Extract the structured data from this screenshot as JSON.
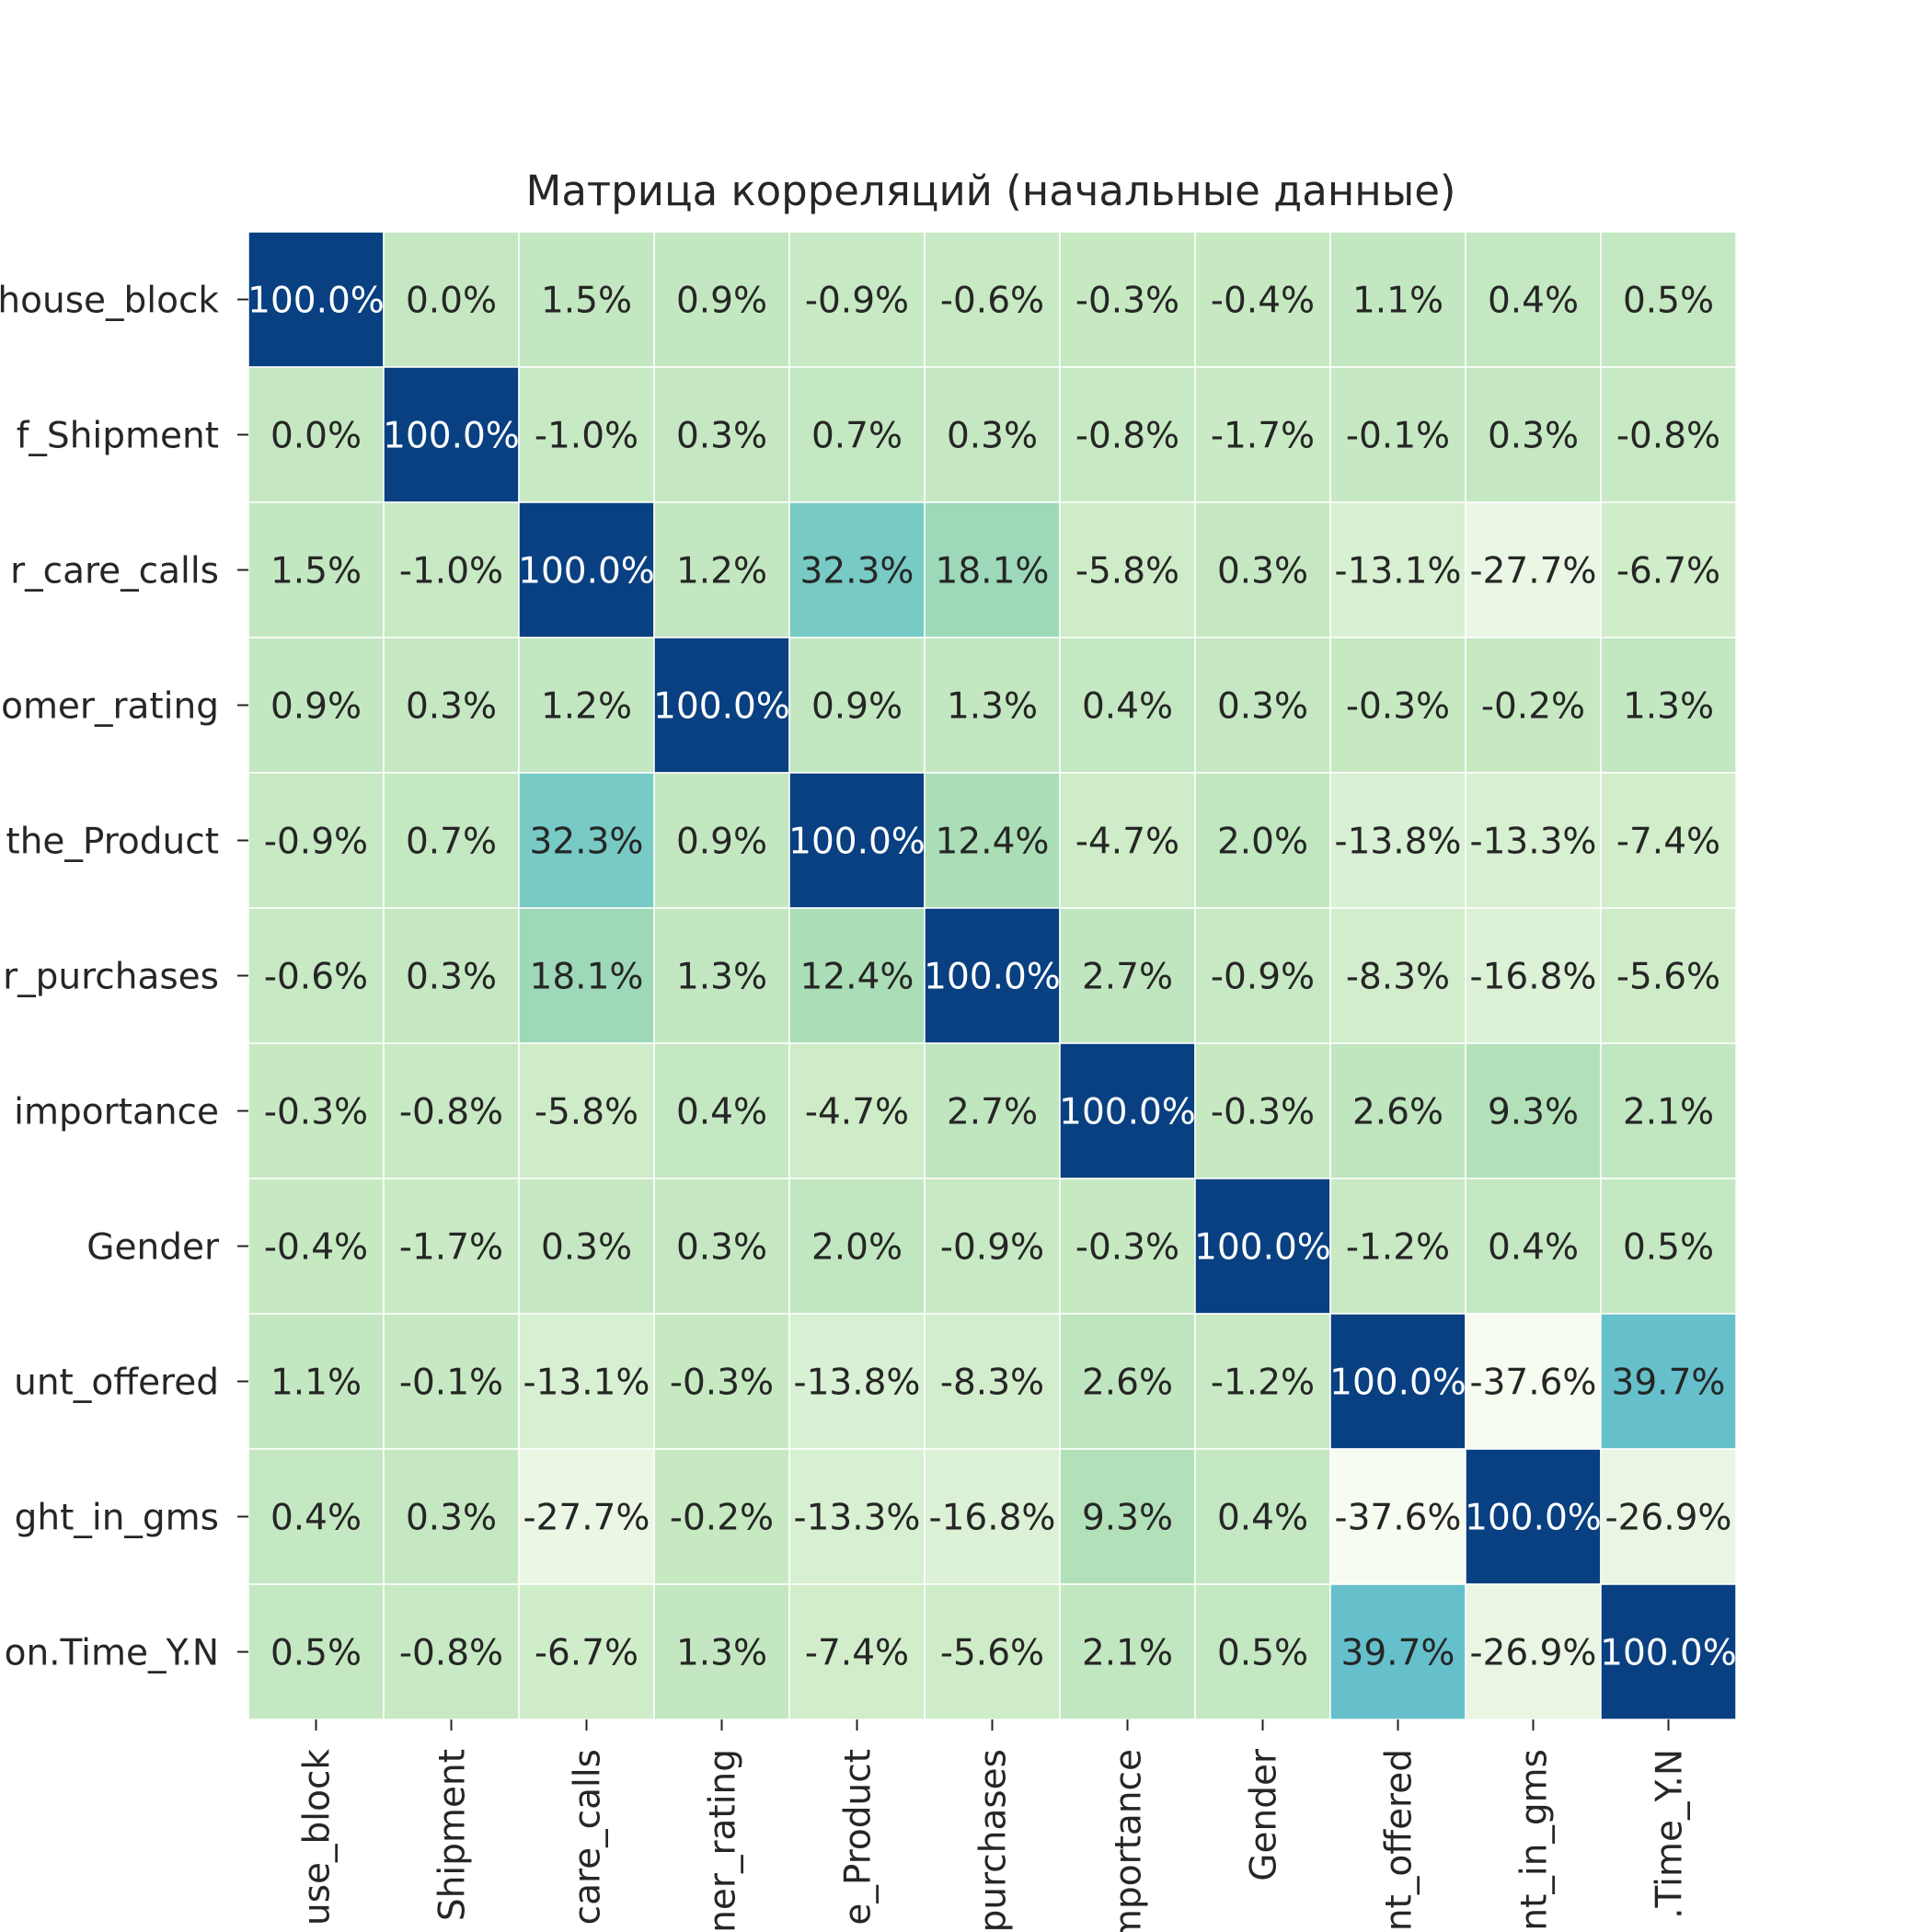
{
  "chart_data": {
    "type": "heatmap",
    "title": "Матрица корреляций (начальные данные)",
    "row_labels": [
      "house_block",
      "f_Shipment",
      "r_care_calls",
      "omer_rating",
      "the_Product",
      "r_purchases",
      "importance",
      "Gender",
      "unt_offered",
      "ght_in_gms",
      "on.Time_Y.N"
    ],
    "col_labels": [
      "use_block",
      "Shipment",
      "care_calls",
      "ner_rating",
      "e_Product",
      "purchases",
      "mportance",
      "Gender",
      "nt_offered",
      "nt_in_gms",
      ".Time_Y.N"
    ],
    "values": [
      [
        100.0,
        -0.0,
        1.5,
        0.9,
        -0.9,
        -0.6,
        -0.3,
        -0.4,
        1.1,
        0.4,
        0.5
      ],
      [
        -0.0,
        100.0,
        -1.0,
        0.3,
        0.7,
        0.3,
        -0.8,
        -1.7,
        -0.1,
        0.3,
        -0.8
      ],
      [
        1.5,
        -1.0,
        100.0,
        1.2,
        32.3,
        18.1,
        -5.8,
        0.3,
        -13.1,
        -27.7,
        -6.7
      ],
      [
        0.9,
        0.3,
        1.2,
        100.0,
        0.9,
        1.3,
        0.4,
        0.3,
        -0.3,
        -0.2,
        1.3
      ],
      [
        -0.9,
        0.7,
        32.3,
        0.9,
        100.0,
        12.4,
        -4.7,
        2.0,
        -13.8,
        -13.3,
        -7.4
      ],
      [
        -0.6,
        0.3,
        18.1,
        1.3,
        12.4,
        100.0,
        2.7,
        -0.9,
        -8.3,
        -16.8,
        -5.6
      ],
      [
        -0.3,
        -0.8,
        -5.8,
        0.4,
        -4.7,
        2.7,
        100.0,
        -0.3,
        2.6,
        9.3,
        2.1
      ],
      [
        -0.4,
        -1.7,
        0.3,
        0.3,
        2.0,
        -0.9,
        -0.3,
        100.0,
        -1.2,
        0.4,
        0.5
      ],
      [
        1.1,
        -0.1,
        -13.1,
        -0.3,
        -13.8,
        -8.3,
        2.6,
        -1.2,
        100.0,
        -37.6,
        39.7
      ],
      [
        0.4,
        0.3,
        -27.7,
        -0.2,
        -13.3,
        -16.8,
        9.3,
        0.4,
        -37.6,
        100.0,
        -26.9
      ],
      [
        0.5,
        -0.8,
        -6.7,
        1.3,
        -7.4,
        -5.6,
        2.1,
        0.5,
        39.7,
        -26.9,
        100.0
      ]
    ],
    "value_format": "percent_1dp",
    "colormap": "GnBu",
    "vrange": [
      -37.6,
      100.0
    ],
    "colorbar": false,
    "grid": false
  }
}
